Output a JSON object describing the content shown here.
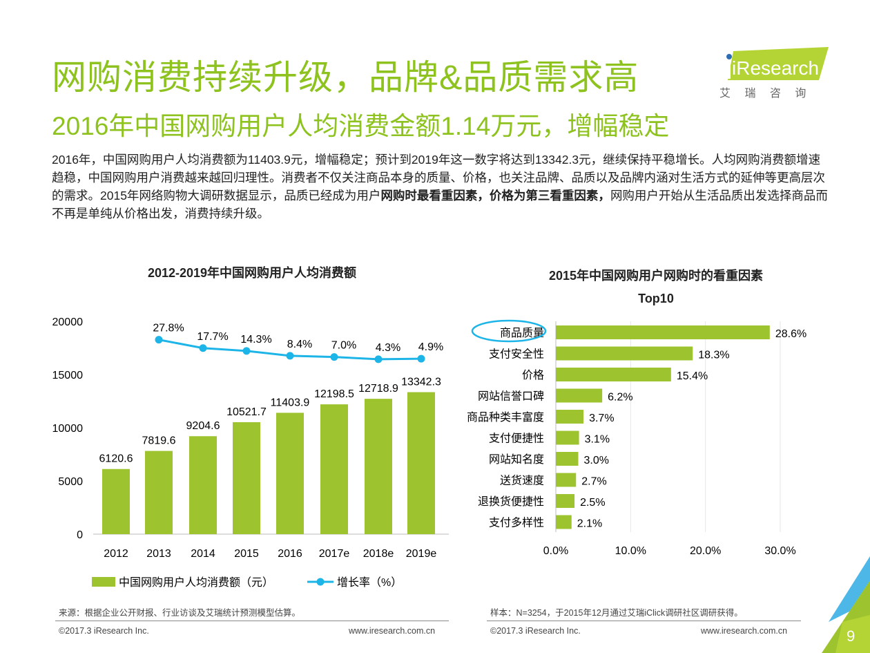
{
  "header": {
    "title": "网购消费持续升级，品牌&品质需求高",
    "subtitle": "2016年中国网购用户人均消费金额1.14万元，增幅稳定",
    "logo_text": "iResearch",
    "logo_cn": "艾 瑞 咨 询"
  },
  "paragraph": {
    "part1": "2016年，中国网购用户人均消费额为11403.9元，增幅稳定；预计到2019年这一数字将达到13342.3元，继续保持平稳增长。人均网购消费额增速趋稳，中国网购用户消费越来越回归理性。消费者不仅关注商品本身的质量、价格，也关注品牌、品质以及品牌内涵对生活方式的延伸等更高层次的需求。2015年网络购物大调研数据显示，品质已经成为用户",
    "bold1": "网购时最看重因素，价格为第三看重因素，",
    "part2": "网购用户开始从生活品质出发选择商品而不再是单纯从价格出发，消费持续升级。"
  },
  "colors": {
    "green": "#9DC42F",
    "title_green": "#8DC21F",
    "blue": "#1DB4E8"
  },
  "chart_data": [
    {
      "type": "bar",
      "title": "2012-2019年中国网购用户人均消费额",
      "categories": [
        "2012",
        "2013",
        "2014",
        "2015",
        "2016",
        "2017e",
        "2018e",
        "2019e"
      ],
      "series": [
        {
          "name": "中国网购用户人均消费额（元）",
          "type": "bar",
          "values": [
            6120.6,
            7819.6,
            9204.6,
            10521.7,
            11403.9,
            12198.5,
            12718.9,
            13342.3
          ]
        },
        {
          "name": "增长率（%）",
          "type": "line",
          "values": [
            null,
            27.8,
            17.7,
            14.3,
            8.4,
            7.0,
            4.3,
            4.9
          ]
        }
      ],
      "ylim": [
        0,
        20000
      ],
      "yticks": [
        0,
        5000,
        10000,
        15000,
        20000
      ],
      "legend": "bottom"
    },
    {
      "type": "bar",
      "orientation": "horizontal",
      "title": "2015年中国网购用户网购时的看重因素",
      "title2": "Top10",
      "categories": [
        "商品质量",
        "支付安全性",
        "价格",
        "网站信誉口碑",
        "商品种类丰富度",
        "支付便捷性",
        "网站知名度",
        "送货速度",
        "退换货便捷性",
        "支付多样性"
      ],
      "values": [
        28.6,
        18.3,
        15.4,
        6.2,
        3.7,
        3.1,
        3.0,
        2.7,
        2.5,
        2.1
      ],
      "xlim": [
        0,
        30
      ],
      "xticks": [
        "0.0%",
        "10.0%",
        "20.0%",
        "30.0%"
      ],
      "highlight": "商品质量"
    }
  ],
  "footer": {
    "source_left": "来源：根据企业公开财报、行业访谈及艾瑞统计预测模型估算。",
    "source_right": "样本：N=3254，于2015年12月通过艾瑞iClick调研社区调研获得。",
    "copyright": "©2017.3 iResearch Inc.",
    "url": "www.iresearch.com.cn",
    "page": "9"
  }
}
